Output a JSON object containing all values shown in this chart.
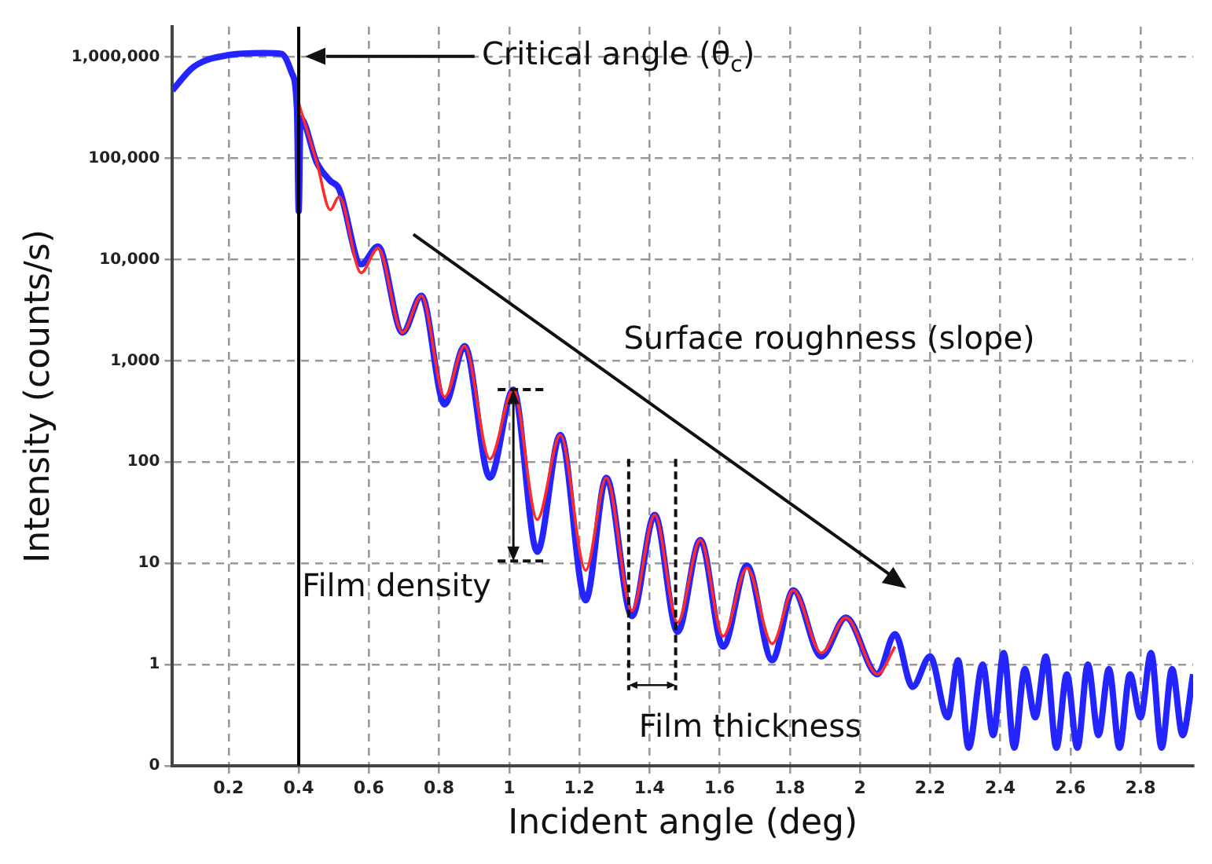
{
  "chart_data": {
    "type": "line",
    "xlabel": "Incident angle (deg)",
    "ylabel": "Intensity (counts/s)",
    "series": [
      {
        "type": "line",
        "color": "#2424ff",
        "x": [
          0.04,
          0.1,
          0.2,
          0.3,
          0.35,
          0.38,
          0.395,
          0.4,
          0.405,
          0.452,
          0.49,
          0.515,
          0.578,
          0.626,
          0.696,
          0.75,
          0.816,
          0.873,
          0.945,
          1.012,
          1.08,
          1.146,
          1.218,
          1.277,
          1.35,
          1.415,
          1.48,
          1.545,
          1.61,
          1.678,
          1.75,
          1.81,
          1.89,
          1.96,
          2.05,
          2.1,
          2.15,
          2.2,
          2.25,
          2.28,
          2.31,
          2.35,
          2.38,
          2.41,
          2.44,
          2.47,
          2.5,
          2.53,
          2.56,
          2.59,
          2.62,
          2.65,
          2.68,
          2.71,
          2.74,
          2.77,
          2.8,
          2.83,
          2.86,
          2.89,
          2.92,
          2.95
        ],
        "values": [
          470000,
          800000,
          1050000,
          1100000,
          1080000,
          700000,
          300000,
          30000,
          250000,
          90000,
          60000,
          50000,
          9000,
          13500,
          1900,
          4400,
          370,
          1400,
          70,
          520,
          13,
          185,
          4.3,
          70,
          3,
          30,
          2.1,
          17,
          1.5,
          9.5,
          1.1,
          5.4,
          1.2,
          2.9,
          0.8,
          2,
          0.6,
          1.2,
          0.3,
          1.1,
          0.15,
          1,
          0.2,
          1.3,
          0.15,
          0.9,
          0.3,
          1.2,
          0.15,
          0.8,
          0.15,
          1,
          0.2,
          0.9,
          0.15,
          0.8,
          0.3,
          1.3,
          0.15,
          0.9,
          0.2,
          0.8
        ]
      },
      {
        "type": "line",
        "color": "#ff2a2a",
        "x": [
          0.4,
          0.452,
          0.49,
          0.515,
          0.578,
          0.626,
          0.696,
          0.75,
          0.816,
          0.873,
          0.945,
          1.012,
          1.08,
          1.146,
          1.218,
          1.277,
          1.35,
          1.415,
          1.48,
          1.545,
          1.61,
          1.678,
          1.75,
          1.81,
          1.89,
          1.96,
          2.05,
          2.1
        ],
        "values": [
          350000,
          90000,
          31000,
          42000,
          7400,
          13000,
          1900,
          4400,
          440,
          1400,
          107,
          520,
          27,
          185,
          8.5,
          70,
          3.4,
          30,
          2.6,
          17,
          1.9,
          9,
          1.6,
          5.4,
          1.3,
          2.9,
          0.8,
          1.5
        ]
      }
    ],
    "xlim": [
      0.04,
      2.95
    ],
    "xticks": [
      0.2,
      0.4,
      0.6,
      0.8,
      1,
      1.2,
      1.4,
      1.6,
      1.8,
      2,
      2.2,
      2.4,
      2.6,
      2.8
    ],
    "ylim": [
      0.1,
      2000000
    ],
    "yticks": [
      {
        "value": 0.1,
        "label": "0"
      },
      1,
      10,
      100,
      {
        "value": 1000,
        "label": "1,000"
      },
      {
        "value": 10000,
        "label": "10,000"
      },
      {
        "value": 100000,
        "label": "100,000"
      },
      {
        "value": 1000000,
        "label": "1,000,000"
      }
    ],
    "log": "y",
    "grid": true,
    "legend": false,
    "ref_lines": [
      {
        "axis": "x",
        "value": 0.4,
        "color": "#000000"
      }
    ],
    "annotations": [
      "Critical angle (θ$_{c}$)",
      "Surface roughness (slope)",
      {
        "text": "Film density",
        "x": 1.012,
        "y": 520
      },
      "Film thickness"
    ]
  }
}
